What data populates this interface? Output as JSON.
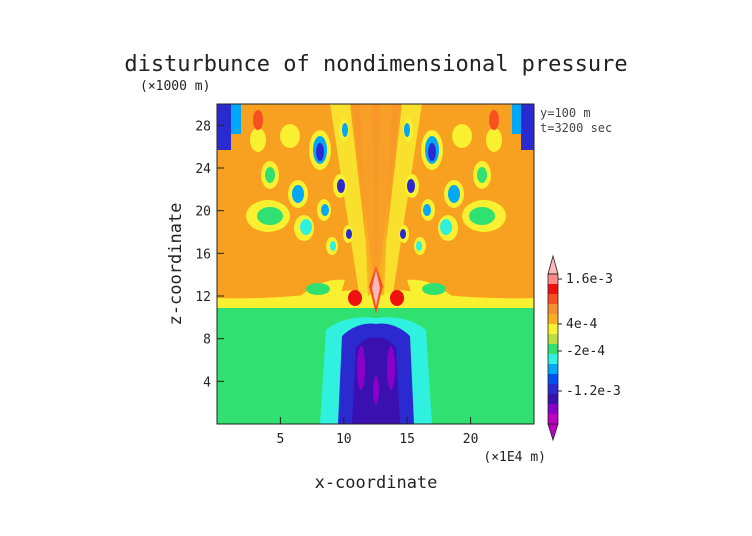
{
  "chart_data": {
    "type": "heatmap",
    "title": "disturbunce of nondimensional pressure",
    "xlabel": "x-coordinate",
    "ylabel": "z-coordinate",
    "x_unit": "(×1E4 m)",
    "y_unit": "(×1000 m)",
    "xlim": [
      0,
      25
    ],
    "ylim": [
      0,
      30
    ],
    "x_ticks": [
      5,
      10,
      15,
      20
    ],
    "y_ticks": [
      4,
      8,
      12,
      16,
      20,
      24,
      28
    ],
    "annotations": [
      "y=100 m",
      "t=3200 sec"
    ],
    "colorbar": {
      "colors": [
        "#c000c0",
        "#8a00c8",
        "#3a10b0",
        "#2a2ad0",
        "#0050f0",
        "#00a8f8",
        "#30f0e0",
        "#30e070",
        "#b8e040",
        "#f8f030",
        "#f8b020",
        "#f89030",
        "#f85020",
        "#f01010",
        "#ff8a8a",
        "#ffb8b8"
      ],
      "labels": [
        "1.6e-3",
        "4e-4",
        "-2e-4",
        "-1.2e-3"
      ]
    }
  }
}
